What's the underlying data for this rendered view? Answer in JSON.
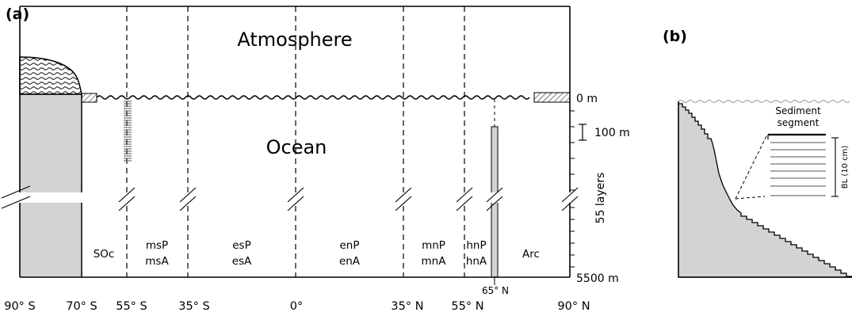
{
  "panel_a": {
    "label": "(a)",
    "atmosphere_label": "Atmosphere",
    "ocean_label": "Ocean",
    "regions": [
      {
        "line1": "SOc",
        "line2": ""
      },
      {
        "line1": "msP",
        "line2": "msA"
      },
      {
        "line1": "esP",
        "line2": "esA"
      },
      {
        "line1": "enP",
        "line2": "enA"
      },
      {
        "line1": "mnP",
        "line2": "mnA"
      },
      {
        "line1": "hnP",
        "line2": "hnA"
      },
      {
        "line1": "Arc",
        "line2": ""
      }
    ],
    "latitude_labels": [
      "90° S",
      "70° S",
      "55° S",
      "35° S",
      "0°",
      "35° N",
      "55° N",
      "90° N"
    ],
    "marker_65n": "65° N",
    "depth_top": "0 m",
    "depth_scale": "100 m",
    "layers": "55 layers",
    "depth_bottom": "5500 m"
  },
  "panel_b": {
    "label": "(b)",
    "sediment_label_line1": "Sediment",
    "sediment_label_line2": "segment",
    "bl_label": "BL (10 cm)"
  }
}
